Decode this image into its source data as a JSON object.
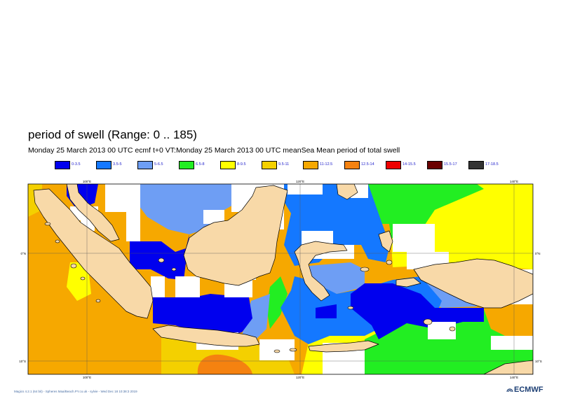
{
  "header": {
    "title": "period of swell (Range: 0 .. 185)",
    "subtitle": "Monday 25 March 2013 00 UTC ecmf t+0 VT:Monday 25 March 2013 00 UTC meanSea  Mean period of total swell"
  },
  "legend": [
    {
      "label": "0-3.5",
      "color": "#0000ee"
    },
    {
      "label": "3.5-5",
      "color": "#1478ff"
    },
    {
      "label": "5-6.5",
      "color": "#6e9ef4"
    },
    {
      "label": "6.5-8",
      "color": "#22ee22"
    },
    {
      "label": "8-9.5",
      "color": "#ffff00"
    },
    {
      "label": "9.5-11",
      "color": "#f4d000"
    },
    {
      "label": "11-12.5",
      "color": "#f6a800"
    },
    {
      "label": "12.5-14",
      "color": "#f58210"
    },
    {
      "label": "14-15.5",
      "color": "#ee0000"
    },
    {
      "label": "15.5-17",
      "color": "#6a0000"
    },
    {
      "label": "17-18.5",
      "color": "#333333"
    }
  ],
  "axes": {
    "top_lon": [
      "100°E",
      "120°E",
      "140°E"
    ],
    "bottom_lon": [
      "100°E",
      "120°E",
      "140°E"
    ],
    "left_lat": [
      "0°N",
      "10°S"
    ],
    "right_lat": [
      "0°N",
      "10°S"
    ]
  },
  "colors": {
    "land": "#f8d9a8",
    "coast": "#000000"
  },
  "footer": {
    "text": "Magics 4.2.1 (64 bit) - Spheres Maa/Beach.PY.co.uk - sylvie - Wed Dec 18 10:38:3 2019"
  },
  "logo": {
    "text": "ECMWF"
  }
}
